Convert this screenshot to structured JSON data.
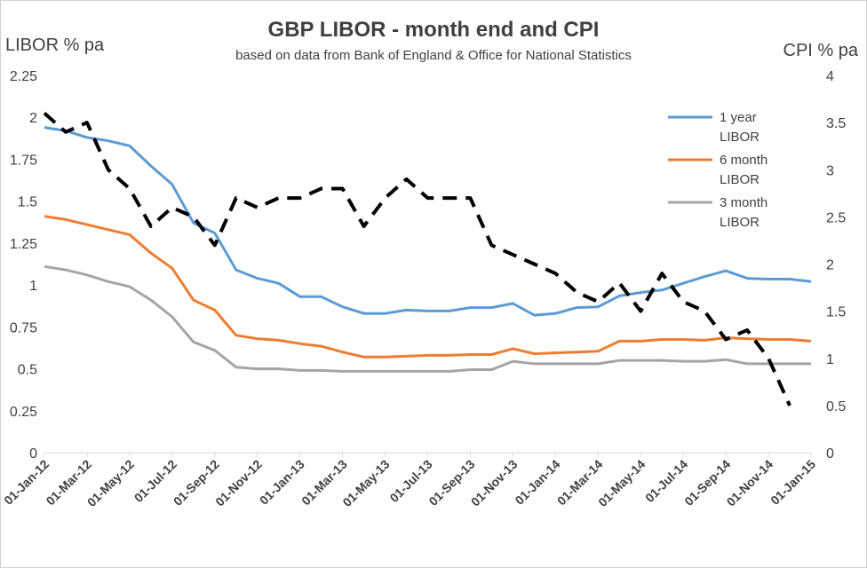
{
  "chart_data": {
    "type": "line",
    "title": "GBP LIBOR - month end and CPI",
    "subtitle": "based on data from Bank of England & Office for National Statistics",
    "ylabel": "LIBOR % pa",
    "ylabel_right": "CPI % pa",
    "ylim": [
      0,
      2.25
    ],
    "ylim_right": [
      0,
      4
    ],
    "yticks": [
      "0",
      "0.25",
      "0.5",
      "0.75",
      "1",
      "1.25",
      "1.5",
      "1.75",
      "2",
      "2.25"
    ],
    "yticks_right": [
      "0",
      "0.5",
      "1",
      "1.5",
      "2",
      "2.5",
      "3",
      "3.5",
      "4"
    ],
    "x_tick_labels": [
      "01-Jan-12",
      "01-Mar-12",
      "01-May-12",
      "01-Jul-12",
      "01-Sep-12",
      "01-Nov-12",
      "01-Jan-13",
      "01-Mar-13",
      "01-May-13",
      "01-Jul-13",
      "01-Sep-13",
      "01-Nov-13",
      "01-Jan-14",
      "01-Mar-14",
      "01-May-14",
      "01-Jul-14",
      "01-Sep-14",
      "01-Nov-14",
      "01-Jan-15"
    ],
    "grid": false,
    "legend_position": "right",
    "series": [
      {
        "name": "1 year LIBOR",
        "axis": "left",
        "color": "#5b9bd5",
        "style": "solid",
        "values": [
          1.94,
          1.92,
          1.88,
          1.86,
          1.83,
          1.71,
          1.6,
          1.37,
          1.31,
          1.09,
          1.04,
          1.01,
          0.93,
          0.93,
          0.87,
          0.83,
          0.83,
          0.85,
          0.845,
          0.845,
          0.865,
          0.865,
          0.89,
          0.82,
          0.83,
          0.865,
          0.87,
          0.935,
          0.955,
          0.97,
          1.01,
          1.05,
          1.085,
          1.04,
          1.035,
          1.035,
          1.02
        ]
      },
      {
        "name": "6 month LIBOR",
        "axis": "left",
        "color": "#ed7d31",
        "style": "solid",
        "values": [
          1.41,
          1.39,
          1.36,
          1.33,
          1.3,
          1.19,
          1.1,
          0.91,
          0.85,
          0.7,
          0.68,
          0.67,
          0.65,
          0.635,
          0.6,
          0.57,
          0.57,
          0.575,
          0.58,
          0.58,
          0.585,
          0.585,
          0.62,
          0.59,
          0.595,
          0.6,
          0.605,
          0.665,
          0.665,
          0.675,
          0.675,
          0.67,
          0.685,
          0.68,
          0.675,
          0.675,
          0.665
        ]
      },
      {
        "name": "3 month LIBOR",
        "axis": "left",
        "color": "#a5a5a5",
        "style": "solid",
        "values": [
          1.11,
          1.09,
          1.06,
          1.02,
          0.99,
          0.91,
          0.81,
          0.66,
          0.61,
          0.51,
          0.5,
          0.5,
          0.49,
          0.49,
          0.485,
          0.485,
          0.485,
          0.485,
          0.485,
          0.485,
          0.495,
          0.495,
          0.545,
          0.53,
          0.53,
          0.53,
          0.53,
          0.55,
          0.55,
          0.55,
          0.545,
          0.545,
          0.555,
          0.53,
          0.53,
          0.53,
          0.53
        ]
      },
      {
        "name": "",
        "axis": "right",
        "color": "#000000",
        "style": "dashed",
        "values": [
          3.6,
          3.4,
          3.5,
          3.0,
          2.8,
          2.4,
          2.6,
          2.5,
          2.2,
          2.7,
          2.6,
          2.7,
          2.7,
          2.8,
          2.8,
          2.4,
          2.7,
          2.9,
          2.7,
          2.7,
          2.7,
          2.2,
          2.1,
          2.0,
          1.9,
          1.7,
          1.6,
          1.8,
          1.5,
          1.9,
          1.6,
          1.5,
          1.2,
          1.3,
          1.0,
          0.5,
          null
        ]
      }
    ]
  }
}
